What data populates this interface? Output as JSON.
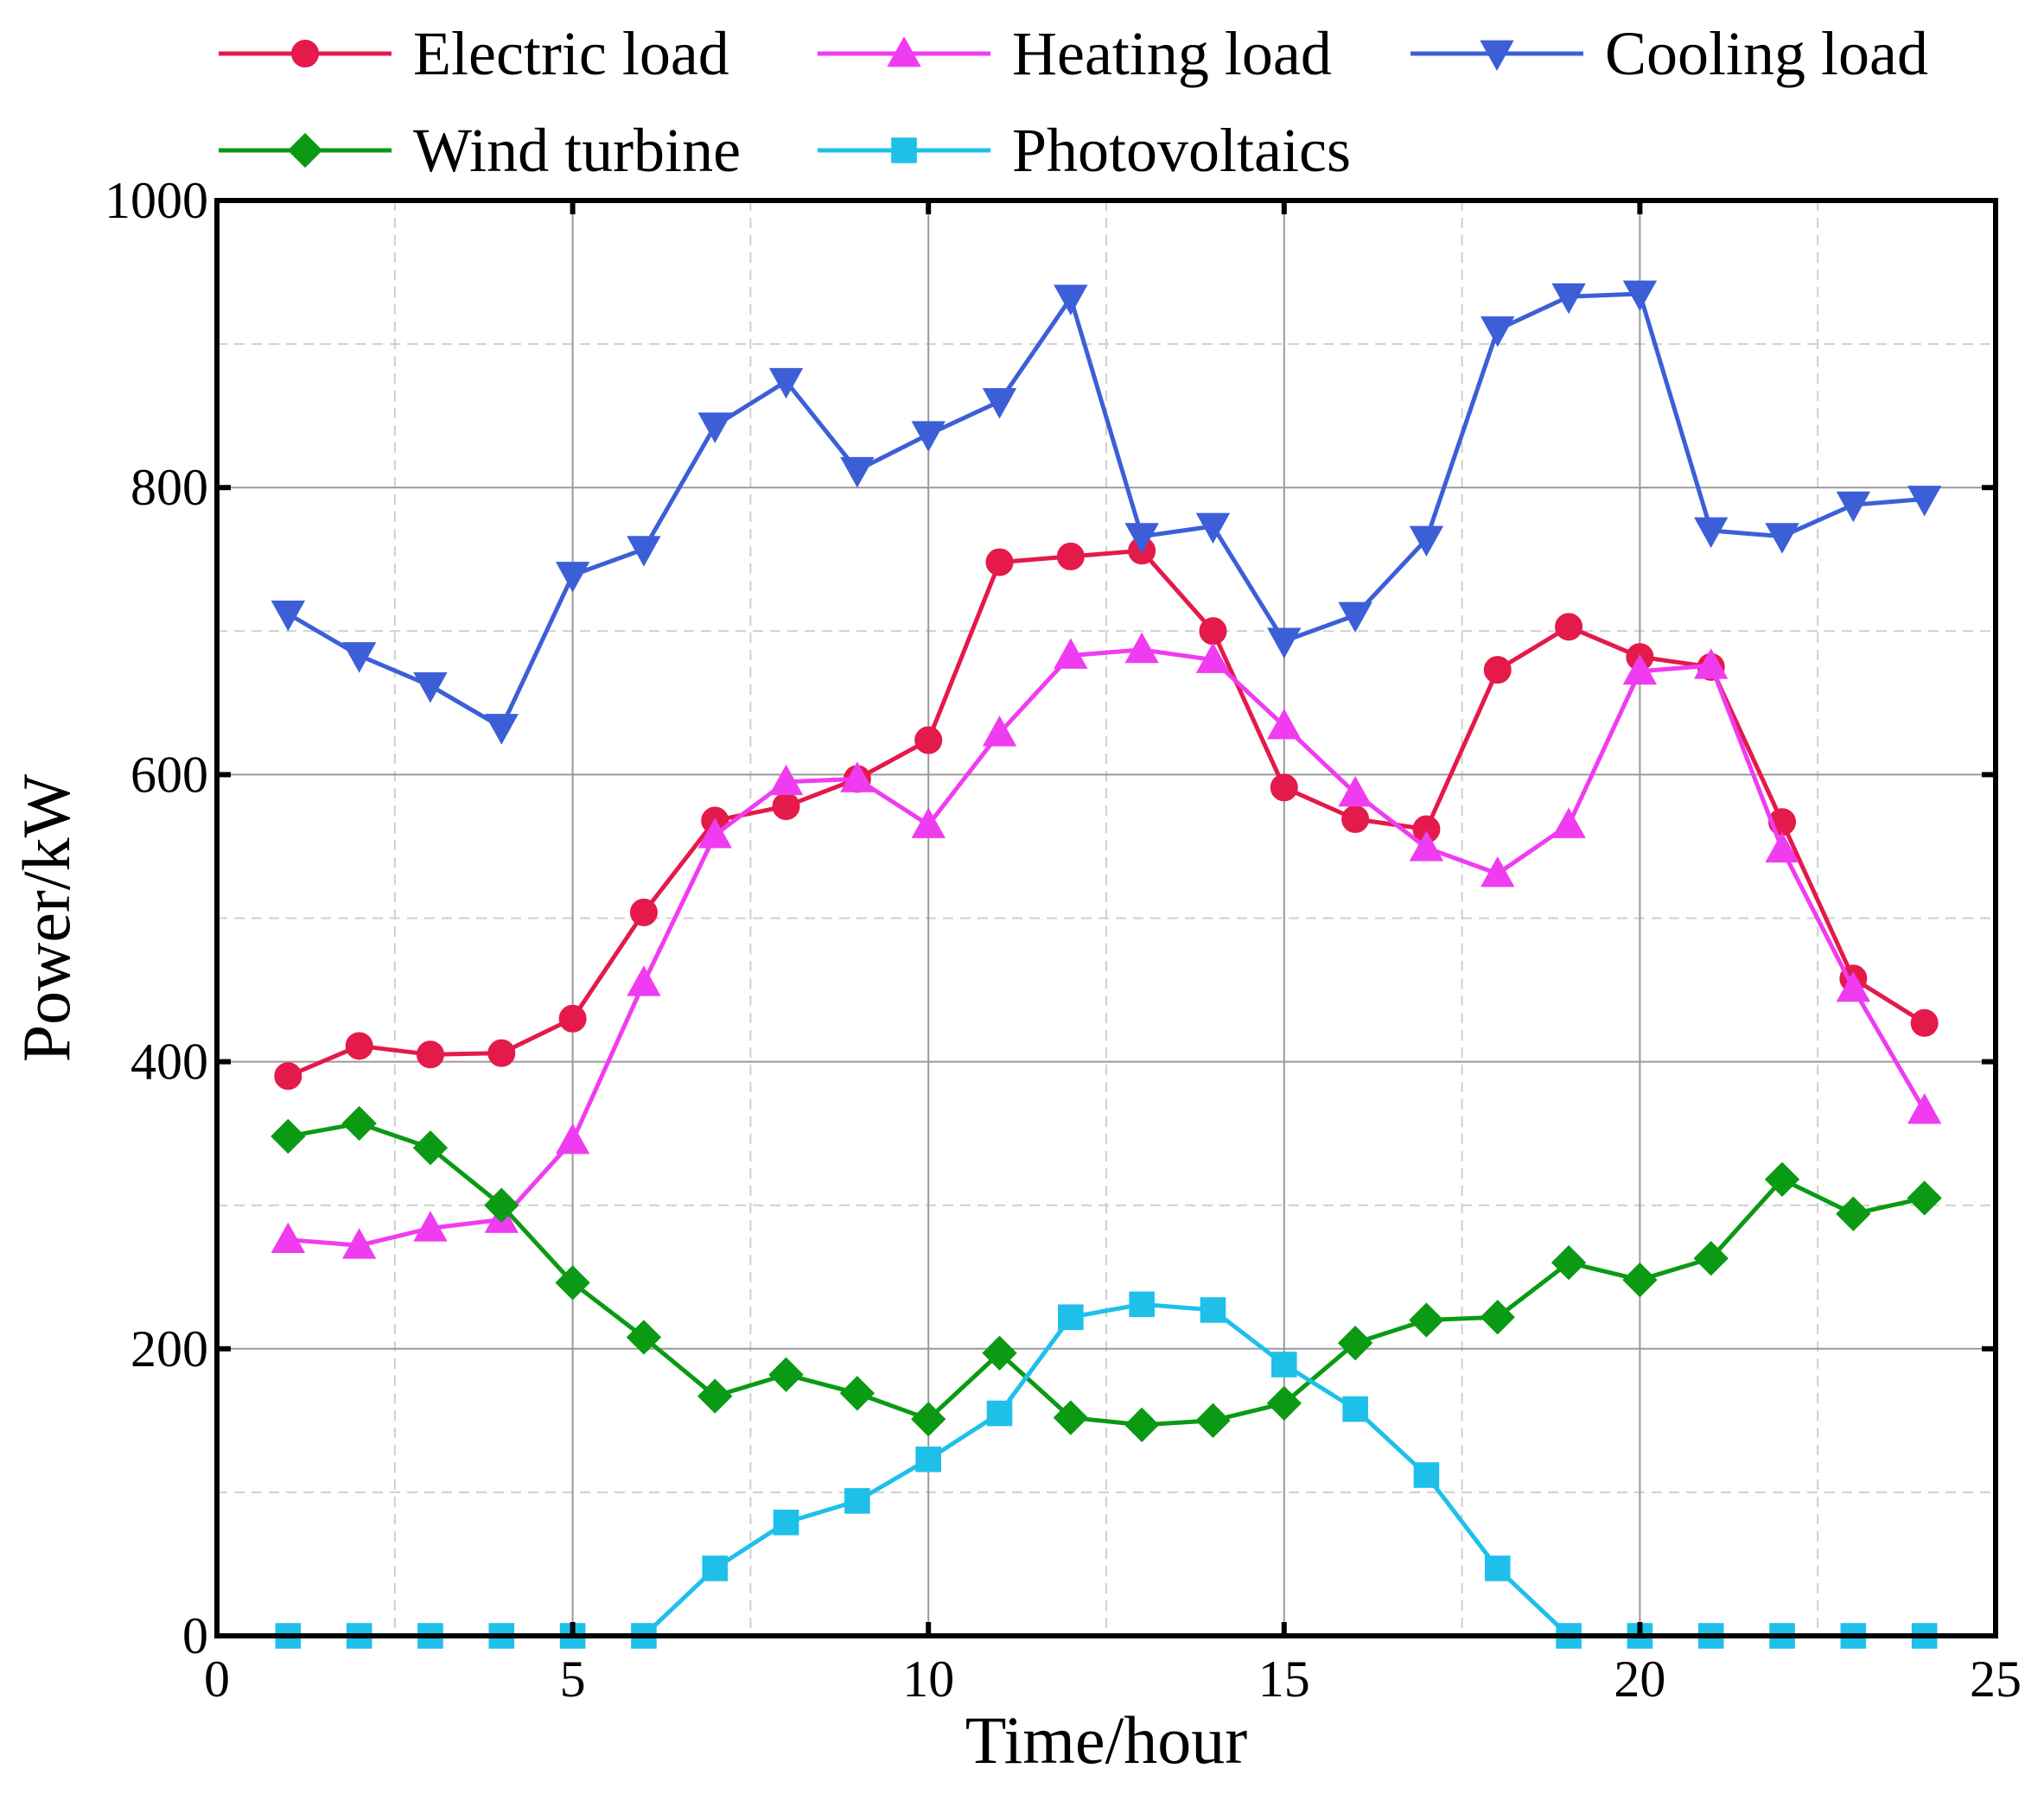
{
  "chart_data": {
    "type": "line",
    "xlabel": "Time/hour",
    "ylabel": "Power/kW",
    "xlim": [
      0,
      25
    ],
    "ylim": [
      0,
      1000
    ],
    "x_ticks": [
      0,
      5,
      10,
      15,
      20,
      25
    ],
    "y_ticks": [
      0,
      200,
      400,
      600,
      800,
      1000
    ],
    "grid": true,
    "legend_position": "top",
    "x": [
      1,
      2,
      3,
      4,
      5,
      6,
      7,
      8,
      9,
      10,
      11,
      12,
      13,
      14,
      15,
      16,
      17,
      18,
      19,
      20,
      21,
      22,
      23,
      24
    ],
    "series": [
      {
        "name": "Electric load",
        "color": "#e31a4a",
        "marker": "circle",
        "values": [
          390,
          411,
          405,
          406,
          430,
          504,
          568,
          578,
          597,
          624,
          748,
          752,
          756,
          700,
          591,
          569,
          562,
          673,
          703,
          682,
          675,
          567,
          458,
          427
        ]
      },
      {
        "name": "Heating load",
        "color": "#f03cf0",
        "marker": "triangle-up",
        "values": [
          276,
          272,
          284,
          290,
          345,
          455,
          558,
          595,
          597,
          565,
          629,
          683,
          687,
          680,
          634,
          587,
          549,
          531,
          565,
          672,
          676,
          548,
          451,
          366
        ]
      },
      {
        "name": "Cooling load",
        "color": "#3c5fd8",
        "marker": "triangle-down",
        "values": [
          712,
          683,
          662,
          633,
          739,
          757,
          843,
          874,
          812,
          837,
          860,
          932,
          766,
          773,
          693,
          711,
          764,
          910,
          933,
          935,
          770,
          766,
          788,
          792
        ]
      },
      {
        "name": "Wind turbine",
        "color": "#0a9a14",
        "marker": "diamond",
        "values": [
          348,
          357,
          340,
          300,
          246,
          208,
          167,
          182,
          169,
          151,
          197,
          152,
          147,
          150,
          162,
          204,
          220,
          222,
          260,
          248,
          263,
          318,
          294,
          305
        ]
      },
      {
        "name": "Photovoltaics",
        "color": "#1ec0ea",
        "marker": "square",
        "values": [
          0,
          0,
          0,
          0,
          0,
          0,
          47,
          79,
          94,
          123,
          155,
          222,
          231,
          227,
          189,
          158,
          112,
          47,
          0,
          0,
          0,
          0,
          0,
          0
        ]
      }
    ]
  }
}
